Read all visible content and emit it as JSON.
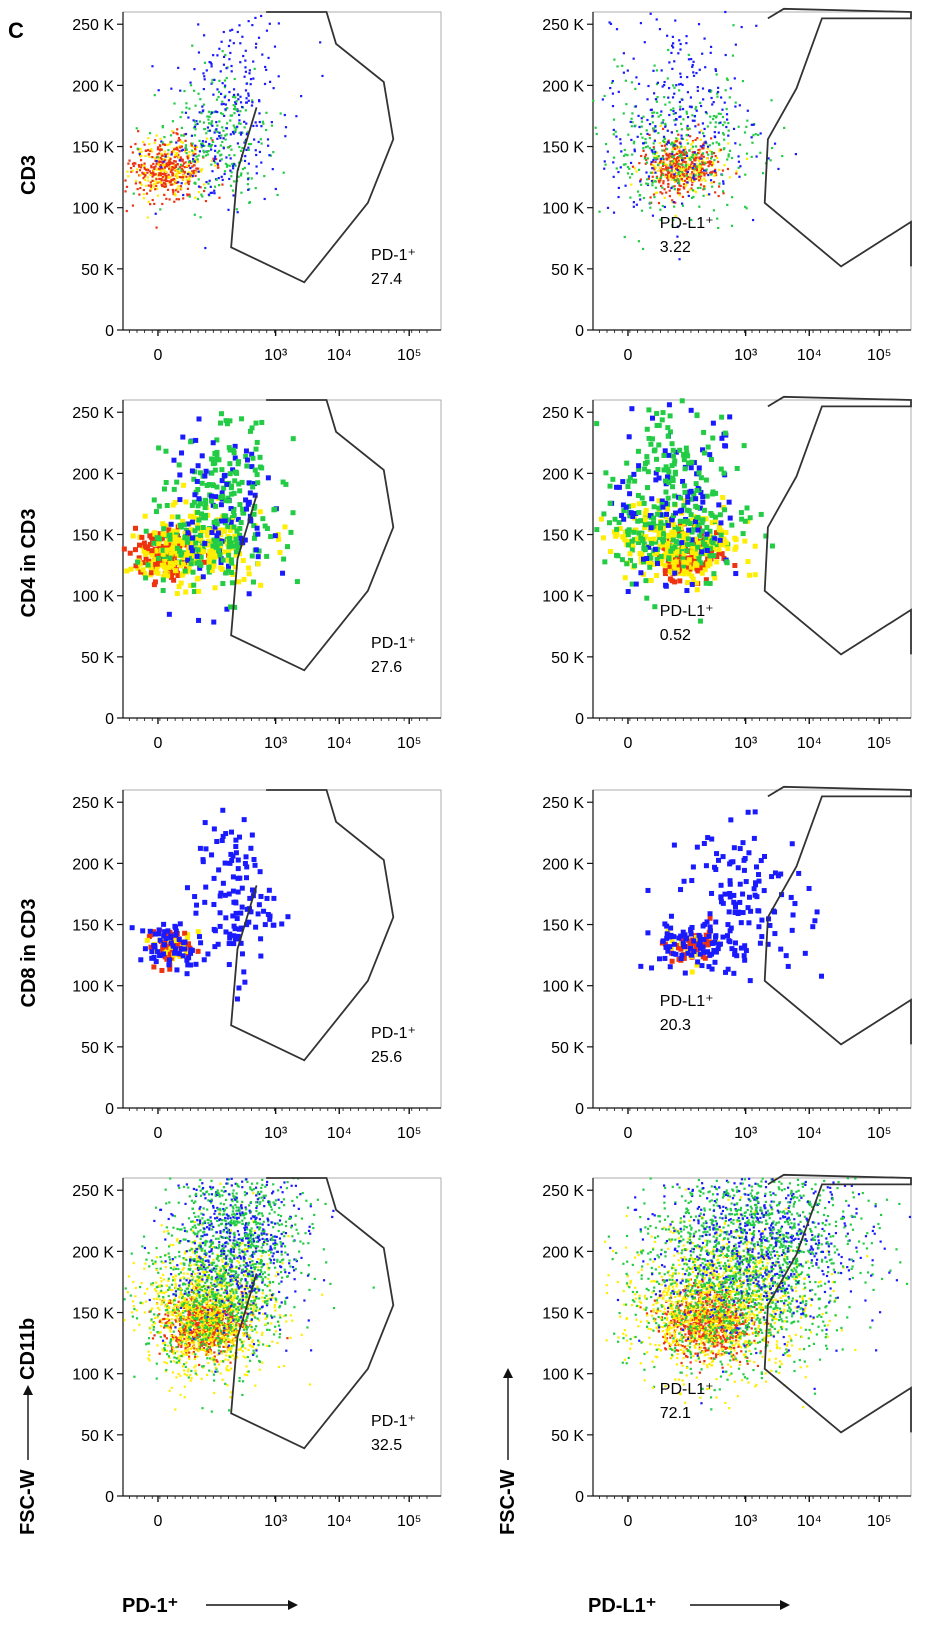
{
  "panel_letter": "C",
  "colors": {
    "gate": "#333333",
    "axis": "#111111",
    "density_low": "#1a1aff",
    "density_mid": "#22cc44",
    "density_high": "#ffee00",
    "density_peak": "#ee3311"
  },
  "bottom_axis_titles": {
    "left": {
      "x": "PD-1⁺",
      "y_bottom": "FSC-W",
      "y_top": "CD11b"
    },
    "right": {
      "x": "PD-L1⁺",
      "y_bottom": "FSC-W"
    }
  },
  "chart_data": [
    {
      "type": "scatter",
      "id": "cd3-pd1",
      "xlabel": "",
      "ylabel": "CD3",
      "ylim": [
        0,
        260000
      ],
      "yticks": [
        "0",
        "50 K",
        "100 K",
        "150 K",
        "200 K",
        "250 K"
      ],
      "xticks": [
        "0",
        "10³",
        "10⁴",
        "10⁵"
      ],
      "gate": {
        "label": "PD-1⁺",
        "value": "27.4"
      },
      "density": "sparse",
      "clusters": [
        {
          "x_frac": 0.14,
          "y": 132000,
          "sx": 0.06,
          "sy": 12000,
          "n": 520,
          "level": 3
        },
        {
          "x_frac": 0.3,
          "y": 155000,
          "sx": 0.09,
          "sy": 28000,
          "n": 380,
          "level": 1
        },
        {
          "x_frac": 0.36,
          "y": 210000,
          "sx": 0.08,
          "sy": 35000,
          "n": 120,
          "level": 0
        }
      ]
    },
    {
      "type": "scatter",
      "id": "cd3-pdl1",
      "xlabel": "",
      "ylabel": "",
      "ylim": [
        0,
        260000
      ],
      "yticks": [
        "0",
        "50 K",
        "100 K",
        "150 K",
        "200 K",
        "250 K"
      ],
      "xticks": [
        "0",
        "10³",
        "10⁴",
        "10⁵"
      ],
      "gate": {
        "label": "PD-L1⁺",
        "value": "3.22"
      },
      "density": "sparse",
      "clusters": [
        {
          "x_frac": 0.28,
          "y": 133000,
          "sx": 0.06,
          "sy": 12000,
          "n": 520,
          "level": 3
        },
        {
          "x_frac": 0.26,
          "y": 150000,
          "sx": 0.13,
          "sy": 30000,
          "n": 480,
          "level": 1
        },
        {
          "x_frac": 0.28,
          "y": 210000,
          "sx": 0.1,
          "sy": 35000,
          "n": 120,
          "level": 0
        }
      ]
    },
    {
      "type": "scatter",
      "id": "cd4-pd1",
      "xlabel": "",
      "ylabel": "CD4 in CD3",
      "ylim": [
        0,
        260000
      ],
      "yticks": [
        "0",
        "50 K",
        "100 K",
        "150 K",
        "200 K",
        "250 K"
      ],
      "xticks": [
        "0",
        "10³",
        "10⁴",
        "10⁵"
      ],
      "gate": {
        "label": "PD-1⁺",
        "value": "27.6"
      },
      "density": "dense",
      "clusters": [
        {
          "x_frac": 0.14,
          "y": 133000,
          "sx": 0.05,
          "sy": 10000,
          "n": 220,
          "level": 3
        },
        {
          "x_frac": 0.26,
          "y": 142000,
          "sx": 0.09,
          "sy": 16000,
          "n": 260,
          "level": 2
        },
        {
          "x_frac": 0.3,
          "y": 175000,
          "sx": 0.09,
          "sy": 35000,
          "n": 260,
          "level": 1
        }
      ]
    },
    {
      "type": "scatter",
      "id": "cd4-pdl1",
      "xlabel": "",
      "ylabel": "",
      "ylim": [
        0,
        260000
      ],
      "yticks": [
        "0",
        "50 K",
        "100 K",
        "150 K",
        "200 K",
        "250 K"
      ],
      "xticks": [
        "0",
        "10³",
        "10⁴",
        "10⁵"
      ],
      "gate": {
        "label": "PD-L1⁺",
        "value": "0.52"
      },
      "density": "dense",
      "clusters": [
        {
          "x_frac": 0.3,
          "y": 133000,
          "sx": 0.05,
          "sy": 10000,
          "n": 200,
          "level": 3
        },
        {
          "x_frac": 0.25,
          "y": 145000,
          "sx": 0.11,
          "sy": 16000,
          "n": 280,
          "level": 2
        },
        {
          "x_frac": 0.27,
          "y": 180000,
          "sx": 0.1,
          "sy": 38000,
          "n": 280,
          "level": 1
        }
      ]
    },
    {
      "type": "scatter",
      "id": "cd8-pd1",
      "xlabel": "",
      "ylabel": "CD8 in CD3",
      "ylim": [
        0,
        260000
      ],
      "yticks": [
        "0",
        "50 K",
        "100 K",
        "150 K",
        "200 K",
        "250 K"
      ],
      "xticks": [
        "0",
        "10³",
        "10⁴",
        "10⁵"
      ],
      "gate": {
        "label": "PD-1⁺",
        "value": "25.6"
      },
      "density": "dense",
      "clusters": [
        {
          "x_frac": 0.15,
          "y": 132000,
          "sx": 0.035,
          "sy": 7000,
          "n": 90,
          "level": 3
        },
        {
          "x_frac": 0.15,
          "y": 132000,
          "sx": 0.05,
          "sy": 10000,
          "n": 60,
          "level": 0
        },
        {
          "x_frac": 0.35,
          "y": 170000,
          "sx": 0.06,
          "sy": 32000,
          "n": 120,
          "level": 0
        }
      ]
    },
    {
      "type": "scatter",
      "id": "cd8-pdl1",
      "xlabel": "",
      "ylabel": "",
      "ylim": [
        0,
        260000
      ],
      "yticks": [
        "0",
        "50 K",
        "100 K",
        "150 K",
        "200 K",
        "250 K"
      ],
      "xticks": [
        "0",
        "10³",
        "10⁴",
        "10⁵"
      ],
      "gate": {
        "label": "PD-L1⁺",
        "value": "20.3"
      },
      "density": "dense",
      "clusters": [
        {
          "x_frac": 0.32,
          "y": 132000,
          "sx": 0.04,
          "sy": 7000,
          "n": 70,
          "level": 3
        },
        {
          "x_frac": 0.3,
          "y": 133000,
          "sx": 0.07,
          "sy": 10000,
          "n": 80,
          "level": 0
        },
        {
          "x_frac": 0.48,
          "y": 170000,
          "sx": 0.1,
          "sy": 30000,
          "n": 130,
          "level": 0
        }
      ]
    },
    {
      "type": "scatter",
      "id": "cd11b-pd1",
      "xlabel": "",
      "ylabel": "",
      "ylim": [
        0,
        260000
      ],
      "yticks": [
        "0",
        "50 K",
        "100 K",
        "150 K",
        "200 K",
        "250 K"
      ],
      "xticks": [
        "0",
        "10³",
        "10⁴",
        "10⁵"
      ],
      "gate": {
        "label": "PD-1⁺",
        "value": "32.5"
      },
      "density": "sparse",
      "clusters": [
        {
          "x_frac": 0.26,
          "y": 140000,
          "sx": 0.06,
          "sy": 12000,
          "n": 900,
          "level": 3
        },
        {
          "x_frac": 0.27,
          "y": 155000,
          "sx": 0.1,
          "sy": 28000,
          "n": 1400,
          "level": 2
        },
        {
          "x_frac": 0.36,
          "y": 205000,
          "sx": 0.1,
          "sy": 38000,
          "n": 1300,
          "level": 1
        }
      ]
    },
    {
      "type": "scatter",
      "id": "cd11b-pdl1",
      "xlabel": "",
      "ylabel": "",
      "ylim": [
        0,
        260000
      ],
      "yticks": [
        "0",
        "50 K",
        "100 K",
        "150 K",
        "200 K",
        "250 K"
      ],
      "xticks": [
        "0",
        "10³",
        "10⁴",
        "10⁵"
      ],
      "gate": {
        "label": "PD-L1⁺",
        "value": "72.1"
      },
      "density": "sparse",
      "clusters": [
        {
          "x_frac": 0.36,
          "y": 142000,
          "sx": 0.07,
          "sy": 14000,
          "n": 900,
          "level": 3
        },
        {
          "x_frac": 0.4,
          "y": 160000,
          "sx": 0.14,
          "sy": 30000,
          "n": 1600,
          "level": 2
        },
        {
          "x_frac": 0.52,
          "y": 205000,
          "sx": 0.16,
          "sy": 38000,
          "n": 1700,
          "level": 1
        }
      ]
    }
  ]
}
